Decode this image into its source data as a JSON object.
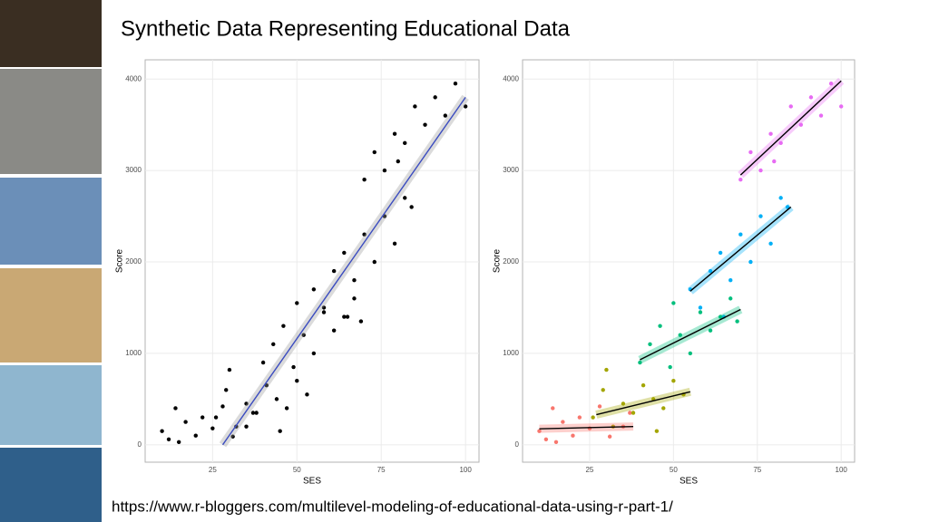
{
  "title": "Synthetic Data Representing Educational Data",
  "source": "https://www.r-bloggers.com/multilevel-modeling-of-educational-data-using-r-part-1/",
  "chart_data": [
    {
      "type": "scatter",
      "x_label": "SES",
      "y_label": "Score",
      "xlim": [
        5,
        104
      ],
      "ylim": [
        -190,
        4210
      ],
      "xticks": [
        25,
        50,
        75,
        100
      ],
      "yticks": [
        0,
        1000,
        2000,
        3000,
        4000
      ],
      "grid": true,
      "series": [
        {
          "color": "#000000",
          "x": [
            10,
            12,
            14,
            17,
            20,
            22,
            25,
            28,
            31,
            35,
            37,
            15,
            26,
            29,
            32,
            35,
            38,
            41,
            44,
            47,
            50,
            53,
            30,
            45,
            40,
            43,
            46,
            49,
            52,
            55,
            58,
            61,
            64,
            67,
            69,
            50,
            55,
            58,
            61,
            64,
            67,
            70,
            73,
            76,
            79,
            82,
            84,
            65,
            70,
            73,
            76,
            79,
            82,
            85,
            88,
            91,
            94,
            97,
            100,
            80
          ],
          "values": [
            150,
            60,
            400,
            250,
            100,
            300,
            180,
            420,
            90,
            200,
            350,
            30,
            300,
            600,
            200,
            450,
            350,
            650,
            500,
            400,
            700,
            550,
            820,
            150,
            900,
            1100,
            1300,
            850,
            1200,
            1000,
            1450,
            1250,
            1400,
            1600,
            1350,
            1550,
            1700,
            1500,
            1900,
            2100,
            1800,
            2300,
            2000,
            2500,
            2200,
            2700,
            2600,
            1400,
            2900,
            3200,
            3000,
            3400,
            3300,
            3700,
            3500,
            3800,
            3600,
            3950,
            3700,
            3100
          ]
        }
      ],
      "fits": [
        {
          "color": "#3b4cc0",
          "x": [
            28,
            100
          ],
          "values": [
            0,
            3800
          ]
        }
      ]
    },
    {
      "type": "scatter",
      "x_label": "SES",
      "y_label": "Score",
      "xlim": [
        5,
        104
      ],
      "ylim": [
        -190,
        4210
      ],
      "xticks": [
        25,
        50,
        75,
        100
      ],
      "yticks": [
        0,
        1000,
        2000,
        3000,
        4000
      ],
      "grid": true,
      "series": [
        {
          "color": "#f8766d",
          "x": [
            10,
            12,
            14,
            17,
            20,
            22,
            25,
            28,
            31,
            35,
            37,
            15
          ],
          "values": [
            150,
            60,
            400,
            250,
            100,
            300,
            180,
            420,
            90,
            200,
            350,
            30
          ]
        },
        {
          "color": "#a3a500",
          "x": [
            26,
            29,
            32,
            35,
            38,
            41,
            44,
            47,
            50,
            53,
            30,
            45
          ],
          "values": [
            300,
            600,
            200,
            450,
            350,
            650,
            500,
            400,
            700,
            550,
            820,
            150
          ]
        },
        {
          "color": "#00bf7d",
          "x": [
            40,
            43,
            46,
            49,
            52,
            55,
            58,
            61,
            64,
            67,
            69,
            50
          ],
          "values": [
            900,
            1100,
            1300,
            850,
            1200,
            1000,
            1450,
            1250,
            1400,
            1600,
            1350,
            1550
          ]
        },
        {
          "color": "#00b0f6",
          "x": [
            55,
            58,
            61,
            64,
            67,
            70,
            73,
            76,
            79,
            82,
            84,
            65
          ],
          "values": [
            1700,
            1500,
            1900,
            2100,
            1800,
            2300,
            2000,
            2500,
            2200,
            2700,
            2600,
            1400
          ]
        },
        {
          "color": "#e76bf3",
          "x": [
            70,
            73,
            76,
            79,
            82,
            85,
            88,
            91,
            94,
            97,
            100,
            80
          ],
          "values": [
            2900,
            3200,
            3000,
            3400,
            3300,
            3700,
            3500,
            3800,
            3600,
            3950,
            3700,
            3100
          ]
        }
      ],
      "fits": [
        {
          "color": "#000000",
          "x": [
            10,
            38
          ],
          "values": [
            175,
            200
          ]
        },
        {
          "color": "#000000",
          "x": [
            27,
            55
          ],
          "values": [
            330,
            580
          ]
        },
        {
          "color": "#000000",
          "x": [
            40,
            70
          ],
          "values": [
            930,
            1480
          ]
        },
        {
          "color": "#000000",
          "x": [
            55,
            85
          ],
          "values": [
            1680,
            2600
          ]
        },
        {
          "color": "#000000",
          "x": [
            70,
            100
          ],
          "values": [
            2950,
            3980
          ]
        }
      ]
    }
  ]
}
